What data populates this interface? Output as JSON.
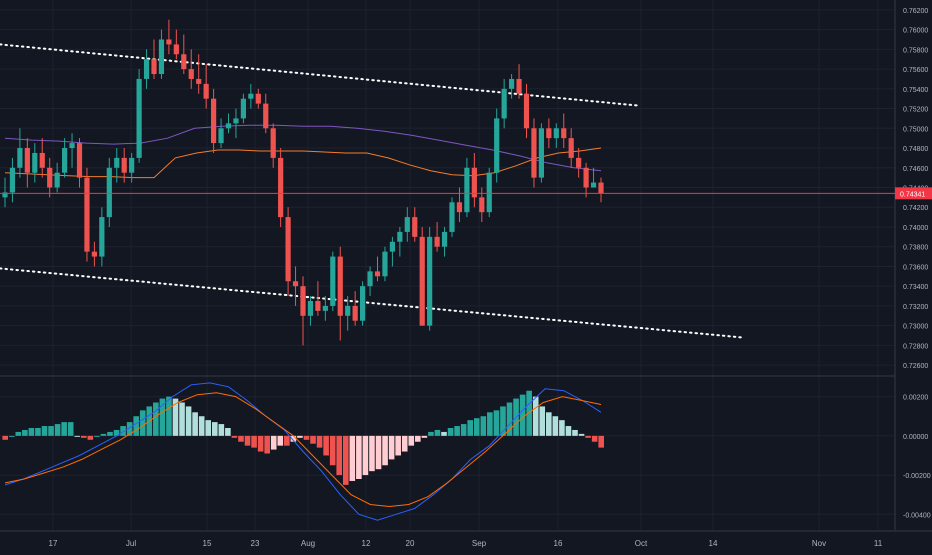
{
  "colors": {
    "background": "#131722",
    "grid": "#1e2230",
    "up": "#26a69a",
    "down": "#ef5350",
    "hist_up_strong": "#26a69a",
    "hist_up_weak": "#b2dfdb",
    "hist_down_strong": "#ef5350",
    "hist_down_weak": "#ffcdd2",
    "macd_line": "#2962ff",
    "signal_line": "#ff6d00",
    "ma_fast": "#f57c2a",
    "ma_slow": "#7e57c2",
    "price_line": "#f23645",
    "trendline": "#ffffff",
    "axis_text": "#b2b5be"
  },
  "price_tag": "0.74341",
  "chart_data": [
    {
      "type": "candlestick",
      "pane": "price",
      "ylim": [
        0.725,
        0.763
      ],
      "y_ticks": [
        "0.72600",
        "0.72800",
        "0.73000",
        "0.73200",
        "0.73400",
        "0.73600",
        "0.73800",
        "0.74000",
        "0.74200",
        "0.74400",
        "0.74600",
        "0.74800",
        "0.75000",
        "0.75200",
        "0.75400",
        "0.75600",
        "0.75800",
        "0.76000",
        "0.76200"
      ],
      "x_ticks": [
        "17",
        "Jul",
        "15",
        "23",
        "Aug",
        "12",
        "20",
        "Sep",
        "16",
        "Oct",
        "14",
        "Nov",
        "11"
      ],
      "last_price": 0.74341,
      "ohlc": [
        [
          0.743,
          0.745,
          0.742,
          0.7435
        ],
        [
          0.7435,
          0.747,
          0.7425,
          0.746
        ],
        [
          0.746,
          0.75,
          0.745,
          0.748
        ],
        [
          0.748,
          0.749,
          0.744,
          0.7455
        ],
        [
          0.7455,
          0.7485,
          0.7445,
          0.7475
        ],
        [
          0.7475,
          0.749,
          0.745,
          0.746
        ],
        [
          0.746,
          0.747,
          0.743,
          0.744
        ],
        [
          0.744,
          0.7465,
          0.7435,
          0.7455
        ],
        [
          0.7455,
          0.749,
          0.745,
          0.748
        ],
        [
          0.748,
          0.7495,
          0.746,
          0.7485
        ],
        [
          0.7485,
          0.749,
          0.744,
          0.745
        ],
        [
          0.745,
          0.746,
          0.7365,
          0.7375
        ],
        [
          0.7375,
          0.7385,
          0.736,
          0.737
        ],
        [
          0.737,
          0.742,
          0.736,
          0.741
        ],
        [
          0.741,
          0.747,
          0.74,
          0.746
        ],
        [
          0.746,
          0.748,
          0.7445,
          0.747
        ],
        [
          0.747,
          0.748,
          0.7445,
          0.7455
        ],
        [
          0.7455,
          0.7475,
          0.7445,
          0.747
        ],
        [
          0.747,
          0.756,
          0.7465,
          0.755
        ],
        [
          0.755,
          0.758,
          0.754,
          0.757
        ],
        [
          0.757,
          0.759,
          0.755,
          0.7555
        ],
        [
          0.7555,
          0.76,
          0.755,
          0.759
        ],
        [
          0.759,
          0.761,
          0.7575,
          0.7585
        ],
        [
          0.7585,
          0.76,
          0.757,
          0.7575
        ],
        [
          0.7575,
          0.7595,
          0.7555,
          0.756
        ],
        [
          0.756,
          0.758,
          0.754,
          0.755
        ],
        [
          0.755,
          0.7575,
          0.7535,
          0.7545
        ],
        [
          0.7545,
          0.7565,
          0.752,
          0.753
        ],
        [
          0.753,
          0.754,
          0.7475,
          0.7485
        ],
        [
          0.7485,
          0.751,
          0.748,
          0.75
        ],
        [
          0.75,
          0.7515,
          0.7495,
          0.7505
        ],
        [
          0.7505,
          0.752,
          0.749,
          0.751
        ],
        [
          0.751,
          0.7535,
          0.7505,
          0.753
        ],
        [
          0.753,
          0.7545,
          0.752,
          0.7535
        ],
        [
          0.7535,
          0.754,
          0.752,
          0.7525
        ],
        [
          0.7525,
          0.7535,
          0.7495,
          0.75
        ],
        [
          0.75,
          0.7505,
          0.746,
          0.747
        ],
        [
          0.747,
          0.748,
          0.74,
          0.741
        ],
        [
          0.741,
          0.742,
          0.733,
          0.7345
        ],
        [
          0.7345,
          0.736,
          0.732,
          0.734
        ],
        [
          0.734,
          0.735,
          0.728,
          0.731
        ],
        [
          0.731,
          0.733,
          0.73,
          0.7325
        ],
        [
          0.7325,
          0.7345,
          0.731,
          0.7315
        ],
        [
          0.7315,
          0.733,
          0.7305,
          0.732
        ],
        [
          0.732,
          0.7375,
          0.7315,
          0.737
        ],
        [
          0.737,
          0.738,
          0.7285,
          0.731
        ],
        [
          0.731,
          0.733,
          0.7295,
          0.732
        ],
        [
          0.732,
          0.7335,
          0.73,
          0.7305
        ],
        [
          0.7305,
          0.7345,
          0.73,
          0.734
        ],
        [
          0.734,
          0.736,
          0.733,
          0.7355
        ],
        [
          0.7355,
          0.737,
          0.7345,
          0.735
        ],
        [
          0.735,
          0.738,
          0.7345,
          0.7375
        ],
        [
          0.7375,
          0.739,
          0.736,
          0.7385
        ],
        [
          0.7385,
          0.74,
          0.737,
          0.7395
        ],
        [
          0.7395,
          0.742,
          0.7385,
          0.741
        ],
        [
          0.741,
          0.742,
          0.7385,
          0.739
        ],
        [
          0.739,
          0.74,
          0.73,
          0.73
        ],
        [
          0.73,
          0.74,
          0.7295,
          0.739
        ],
        [
          0.739,
          0.7405,
          0.7375,
          0.738
        ],
        [
          0.738,
          0.74,
          0.737,
          0.7395
        ],
        [
          0.7395,
          0.743,
          0.739,
          0.7425
        ],
        [
          0.7425,
          0.744,
          0.7405,
          0.7415
        ],
        [
          0.7415,
          0.747,
          0.741,
          0.746
        ],
        [
          0.746,
          0.7475,
          0.742,
          0.743
        ],
        [
          0.743,
          0.744,
          0.7405,
          0.7415
        ],
        [
          0.7415,
          0.746,
          0.741,
          0.7455
        ],
        [
          0.7455,
          0.752,
          0.7445,
          0.751
        ],
        [
          0.751,
          0.755,
          0.75,
          0.754
        ],
        [
          0.754,
          0.7555,
          0.753,
          0.755
        ],
        [
          0.755,
          0.7565,
          0.753,
          0.7535
        ],
        [
          0.7535,
          0.7545,
          0.749,
          0.75
        ],
        [
          0.75,
          0.751,
          0.744,
          0.745
        ],
        [
          0.745,
          0.7505,
          0.7445,
          0.75
        ],
        [
          0.75,
          0.751,
          0.748,
          0.749
        ],
        [
          0.749,
          0.7505,
          0.748,
          0.75
        ],
        [
          0.75,
          0.7515,
          0.748,
          0.749
        ],
        [
          0.749,
          0.75,
          0.746,
          0.747
        ],
        [
          0.747,
          0.748,
          0.745,
          0.746
        ],
        [
          0.746,
          0.7465,
          0.743,
          0.744
        ],
        [
          0.744,
          0.746,
          0.744,
          0.7445
        ],
        [
          0.7445,
          0.745,
          0.7425,
          0.7434
        ]
      ],
      "ma_fast": [
        0.7455,
        0.7454,
        0.7453,
        0.7452,
        0.7451,
        0.7451,
        0.745,
        0.745,
        0.747,
        0.7475,
        0.7478,
        0.7478,
        0.7477,
        0.7477,
        0.7477,
        0.7476,
        0.7475,
        0.7475,
        0.747,
        0.7463,
        0.7457,
        0.7453,
        0.7452,
        0.7455,
        0.7462,
        0.747,
        0.7475,
        0.7477,
        0.748
      ],
      "ma_slow": [
        0.749,
        0.7488,
        0.7487,
        0.7485,
        0.7484,
        0.7485,
        0.749,
        0.75,
        0.7502,
        0.7503,
        0.7503,
        0.7502,
        0.7502,
        0.75,
        0.7497,
        0.7493,
        0.7488,
        0.7483,
        0.7478,
        0.7472,
        0.7465,
        0.746,
        0.7457
      ],
      "trendlines": [
        {
          "start": [
            0,
            0.7585
          ],
          "end": [
            85,
            0.7523
          ]
        },
        {
          "start": [
            0,
            0.7358
          ],
          "end": [
            99,
            0.7288
          ]
        }
      ]
    },
    {
      "type": "histogram",
      "pane": "macd",
      "ylim": [
        -0.0048,
        0.003
      ],
      "y_ticks": [
        "0.00200",
        "0.00000",
        "-0.00200",
        "-0.00400"
      ],
      "histogram": [
        -0.0002,
        0.0,
        0.0002,
        0.0003,
        0.0004,
        0.0004,
        0.0005,
        0.0005,
        0.0006,
        0.0007,
        0.0007,
        0.0,
        -0.0001,
        -0.0002,
        0.0,
        0.0001,
        0.0002,
        0.0003,
        0.0005,
        0.0007,
        0.001,
        0.0013,
        0.0015,
        0.0017,
        0.0019,
        0.002,
        0.0019,
        0.0017,
        0.0015,
        0.0012,
        0.001,
        0.0008,
        0.0007,
        0.0006,
        0.0004,
        -0.0001,
        -0.0003,
        -0.0005,
        -0.0006,
        -0.0008,
        -0.0009,
        -0.0007,
        -0.0005,
        -0.0005,
        -0.0003,
        -0.0001,
        -0.0002,
        -0.0004,
        -0.0006,
        -0.001,
        -0.0015,
        -0.002,
        -0.0025,
        -0.0023,
        -0.0022,
        -0.002,
        -0.0018,
        -0.0017,
        -0.0015,
        -0.0012,
        -0.001,
        -0.0008,
        -0.0005,
        -0.0003,
        -0.0001,
        0.0002,
        0.0003,
        0.0002,
        0.0004,
        0.0005,
        0.0006,
        0.0008,
        0.0009,
        0.001,
        0.0012,
        0.0013,
        0.0015,
        0.0017,
        0.0019,
        0.0021,
        0.0023,
        0.002,
        0.0015,
        0.0012,
        0.001,
        0.0008,
        0.0005,
        0.0003,
        0.0001,
        -0.0001,
        -0.0003,
        -0.0006
      ],
      "macd": [
        -0.0025,
        -0.0022,
        -0.0018,
        -0.0014,
        -0.001,
        -0.0005,
        0.0,
        0.0006,
        0.0012,
        0.002,
        0.0026,
        0.0027,
        0.0025,
        0.0018,
        0.001,
        0.0003,
        -0.0008,
        -0.0018,
        -0.003,
        -0.004,
        -0.0043,
        -0.004,
        -0.0037,
        -0.003,
        -0.0022,
        -0.0012,
        -0.0005,
        0.0005,
        0.0015,
        0.0024,
        0.0023,
        0.0018,
        0.0012
      ],
      "signal": [
        -0.0024,
        -0.0022,
        -0.0019,
        -0.0016,
        -0.0012,
        -0.0007,
        -0.0002,
        0.0004,
        0.0011,
        0.0017,
        0.0021,
        0.0022,
        0.002,
        0.0014,
        0.0007,
        0.0,
        -0.001,
        -0.002,
        -0.003,
        -0.0035,
        -0.0036,
        -0.0035,
        -0.0031,
        -0.0024,
        -0.0016,
        -0.0008,
        0.0001,
        0.001,
        0.0017,
        0.002,
        0.0018,
        0.0016
      ]
    }
  ]
}
